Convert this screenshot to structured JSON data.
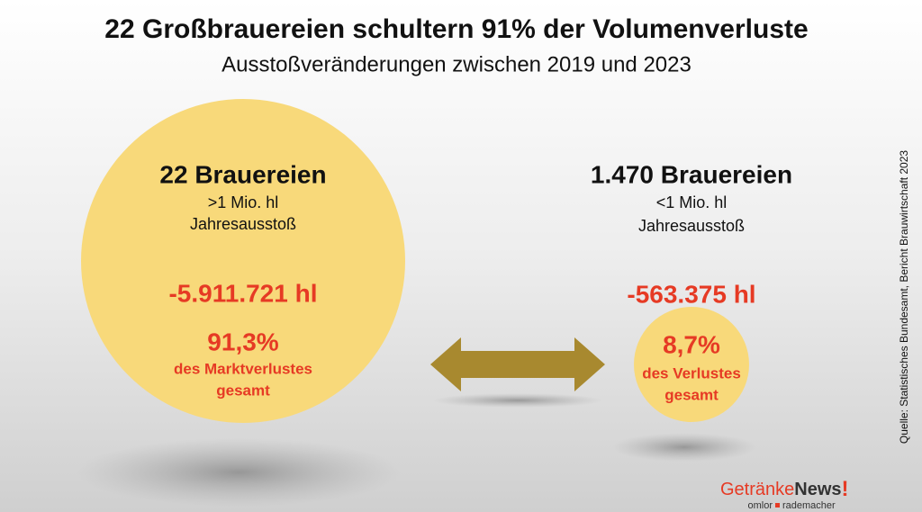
{
  "header": {
    "title": "22 Großbrauereien schultern 91% der Volumenverluste",
    "subtitle": "Ausstoßveränderungen zwischen 2019 und 2023"
  },
  "groups": [
    {
      "name": "22 Brauereien",
      "size": ">1 Mio. hl",
      "unit": "Jahresausstoß",
      "change": "-5.911.721 hl",
      "share": "91,3%",
      "share_label_1": "des Marktverlustes",
      "share_label_2": "gesamt"
    },
    {
      "name": "1.470 Brauereien",
      "size": "<1 Mio. hl",
      "unit": "Jahresausstoß",
      "change": "-563.375 hl",
      "share": "8,7%",
      "share_label_1": "des Verlustes",
      "share_label_2": "gesamt"
    }
  ],
  "source": "Quelle: Statistisches Bundesamt, Bericht Brauwirtschaft 2023",
  "logo": {
    "part1": "Getränke",
    "part2": "News",
    "mark": "!",
    "sub1": "omlor",
    "sub2": "rademacher"
  }
}
